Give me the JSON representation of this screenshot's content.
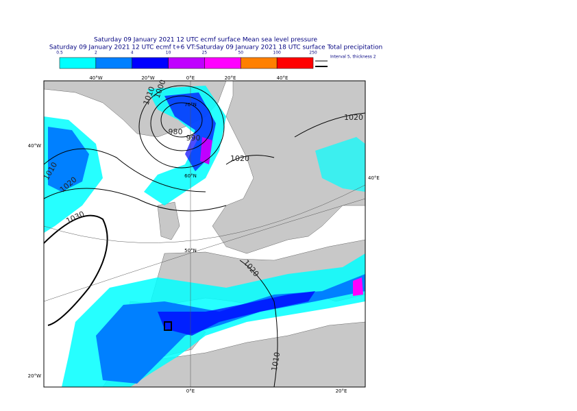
{
  "header": {
    "title_line1": "Saturday 09 January 2021 12 UTC ecmf surface  Mean sea level pressure",
    "title_line2": "Saturday 09 January 2021 12 UTC ecmf t+6 VT:Saturday 09 January 2021 18 UTC surface  Total precipitation"
  },
  "colorbar": {
    "labels": [
      0.5,
      2,
      4,
      10,
      25,
      50,
      100,
      250
    ],
    "colors": [
      "#00ffff",
      "#0080ff",
      "#0000ff",
      "#c000ff",
      "#ff00ff",
      "#ff8000",
      "#ff0000"
    ]
  },
  "legend": {
    "text": "Interval 5, thickness 2"
  },
  "graticule": {
    "top": [
      "40°W",
      "20°W",
      "0°E",
      "20°E",
      "40°E"
    ],
    "left": [
      "40°W",
      "20°W"
    ],
    "right": [
      "40°E"
    ],
    "bottom": [
      "0°E",
      "20°E"
    ],
    "latitudes": [
      "70°N",
      "60°N",
      "50°N"
    ]
  },
  "contours": [
    1010,
    1020,
    1030,
    980,
    990,
    1000,
    1010,
    1020,
    1020,
    1020,
    1010
  ]
}
